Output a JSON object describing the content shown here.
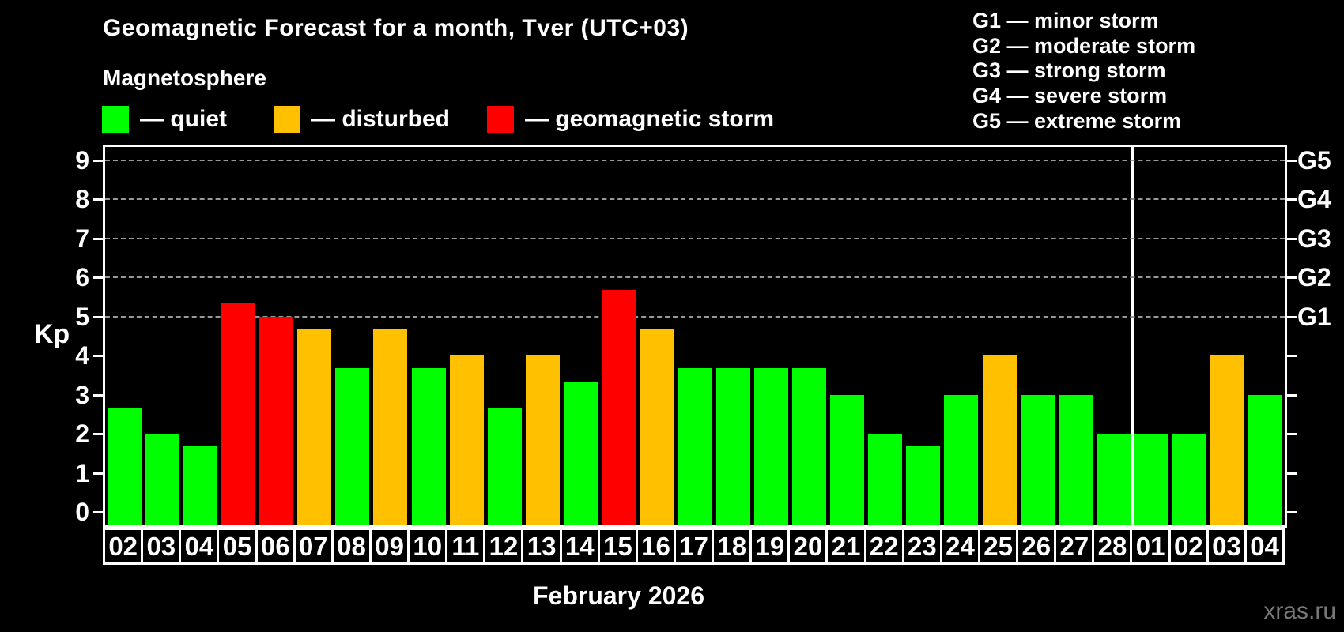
{
  "title": "Geomagnetic Forecast for a month, Tver (UTC+03)",
  "subtitle": "Magnetosphere",
  "legend": {
    "quiet_label": "— quiet",
    "disturbed_label": "— disturbed",
    "storm_label": "— geomagnetic storm"
  },
  "g_legend": [
    "G1 — minor storm",
    "G2 — moderate storm",
    "G3 — strong storm",
    "G4 — severe storm",
    "G5 — extreme storm"
  ],
  "colors": {
    "quiet": "#00FF00",
    "disturbed": "#FFC000",
    "storm": "#FF0000",
    "grid": "#999999",
    "axis": "#FFFFFF",
    "background": "#000000",
    "watermark": "#777777"
  },
  "axis": {
    "kp_label": "Kp",
    "kp_ticks": [
      0,
      1,
      2,
      3,
      4,
      5,
      6,
      7,
      8,
      9
    ],
    "g_labels": [
      {
        "text": "G5",
        "kp": 9
      },
      {
        "text": "G4",
        "kp": 8
      },
      {
        "text": "G3",
        "kp": 7
      },
      {
        "text": "G2",
        "kp": 6
      },
      {
        "text": "G1",
        "kp": 5
      }
    ]
  },
  "xlabel": "February 2026",
  "watermark": "xras.ru",
  "chart_data": {
    "type": "bar",
    "title": "Geomagnetic Forecast for a month, Tver (UTC+03)",
    "ylabel": "Kp",
    "xlabel": "February 2026",
    "ylim": [
      0,
      9
    ],
    "gridlines_at_kp": [
      5,
      6,
      7,
      8,
      9
    ],
    "legend_position": "top",
    "month_boundary_after_index": 26,
    "categories": [
      "02",
      "03",
      "04",
      "05",
      "06",
      "07",
      "08",
      "09",
      "10",
      "11",
      "12",
      "13",
      "14",
      "15",
      "16",
      "17",
      "18",
      "19",
      "20",
      "21",
      "22",
      "23",
      "24",
      "25",
      "26",
      "27",
      "28",
      "01",
      "02",
      "03",
      "04"
    ],
    "values": [
      2.67,
      2.0,
      1.67,
      5.33,
      5.0,
      4.67,
      3.67,
      4.67,
      3.67,
      4.0,
      2.67,
      4.0,
      3.33,
      5.67,
      4.67,
      3.67,
      3.67,
      3.67,
      3.67,
      3.0,
      2.0,
      1.67,
      3.0,
      4.0,
      3.0,
      3.0,
      2.0,
      2.0,
      2.0,
      4.0,
      3.0
    ],
    "statuses": [
      "quiet",
      "quiet",
      "quiet",
      "storm",
      "storm",
      "disturbed",
      "quiet",
      "disturbed",
      "quiet",
      "disturbed",
      "quiet",
      "disturbed",
      "quiet",
      "storm",
      "disturbed",
      "quiet",
      "quiet",
      "quiet",
      "quiet",
      "quiet",
      "quiet",
      "quiet",
      "quiet",
      "disturbed",
      "quiet",
      "quiet",
      "quiet",
      "quiet",
      "quiet",
      "disturbed",
      "quiet"
    ]
  }
}
